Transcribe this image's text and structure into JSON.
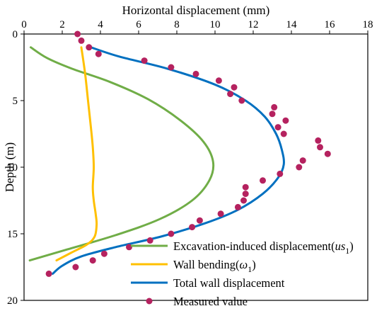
{
  "chart_data": {
    "type": "line",
    "xlabel": "Horizontal displacement (mm)",
    "ylabel": "Depth (m)",
    "xlim": [
      0,
      18
    ],
    "ylim": [
      0,
      20
    ],
    "y_inverted": true,
    "x_axis_position": "top",
    "x_ticks": [
      0,
      2,
      4,
      6,
      8,
      10,
      12,
      14,
      16,
      18
    ],
    "y_ticks": [
      0,
      5,
      10,
      15,
      20
    ],
    "grid": false,
    "legend_position": "bottom-right",
    "series": [
      {
        "name": "Excavation-induced displacement(us1)",
        "legend_main": "Excavation-induced displacement(",
        "legend_italic": "us",
        "legend_sub": "1",
        "legend_close": ")",
        "kind": "line",
        "color": "#70ad47",
        "points": [
          [
            0.35,
            1.0
          ],
          [
            1.2,
            1.8
          ],
          [
            2.5,
            2.6
          ],
          [
            4.5,
            3.6
          ],
          [
            6.5,
            4.9
          ],
          [
            8.2,
            6.5
          ],
          [
            9.4,
            8.1
          ],
          [
            9.9,
            9.6
          ],
          [
            9.7,
            11.0
          ],
          [
            8.8,
            12.5
          ],
          [
            7.1,
            13.9
          ],
          [
            4.8,
            15.1
          ],
          [
            2.2,
            16.2
          ],
          [
            0.3,
            17.0
          ]
        ]
      },
      {
        "name": "Wall bending(ω1)",
        "legend_main": "Wall bending(",
        "legend_italic": "ω",
        "legend_sub": "1",
        "legend_close": ")",
        "kind": "line",
        "color": "#ffc000",
        "points": [
          [
            3.0,
            1.0
          ],
          [
            3.2,
            3.0
          ],
          [
            3.35,
            5.0
          ],
          [
            3.5,
            7.0
          ],
          [
            3.6,
            8.5
          ],
          [
            3.65,
            10.0
          ],
          [
            3.6,
            11.5
          ],
          [
            3.65,
            12.5
          ],
          [
            3.75,
            13.5
          ],
          [
            3.8,
            14.3
          ],
          [
            3.7,
            15.2
          ],
          [
            3.3,
            15.8
          ],
          [
            2.5,
            16.4
          ],
          [
            1.7,
            17.0
          ]
        ]
      },
      {
        "name": "Total wall displacement",
        "legend_main": "Total wall displacement",
        "kind": "line",
        "color": "#0070c0",
        "points": [
          [
            3.5,
            1.0
          ],
          [
            5.0,
            1.7
          ],
          [
            7.5,
            2.6
          ],
          [
            10.0,
            3.8
          ],
          [
            11.6,
            5.0
          ],
          [
            12.6,
            6.2
          ],
          [
            13.2,
            7.5
          ],
          [
            13.5,
            8.7
          ],
          [
            13.6,
            9.8
          ],
          [
            13.3,
            10.8
          ],
          [
            12.5,
            12.0
          ],
          [
            11.2,
            13.2
          ],
          [
            9.5,
            14.2
          ],
          [
            7.2,
            15.2
          ],
          [
            4.8,
            16.0
          ],
          [
            3.0,
            16.7
          ],
          [
            2.0,
            17.4
          ],
          [
            1.5,
            18.0
          ]
        ]
      },
      {
        "name": "Measured value",
        "legend_main": "Measured value",
        "kind": "scatter",
        "color": "#b5225f",
        "points": [
          [
            2.8,
            0.0
          ],
          [
            3.0,
            0.5
          ],
          [
            3.4,
            1.0
          ],
          [
            3.9,
            1.5
          ],
          [
            6.3,
            2.0
          ],
          [
            7.7,
            2.5
          ],
          [
            9.0,
            3.0
          ],
          [
            10.2,
            3.5
          ],
          [
            11.0,
            4.0
          ],
          [
            10.8,
            4.5
          ],
          [
            11.4,
            5.0
          ],
          [
            13.1,
            5.5
          ],
          [
            13.0,
            6.0
          ],
          [
            13.7,
            6.5
          ],
          [
            13.3,
            7.0
          ],
          [
            13.6,
            7.5
          ],
          [
            15.4,
            8.0
          ],
          [
            15.5,
            8.5
          ],
          [
            15.9,
            9.0
          ],
          [
            14.6,
            9.5
          ],
          [
            14.4,
            10.0
          ],
          [
            13.4,
            10.5
          ],
          [
            12.5,
            11.0
          ],
          [
            11.6,
            11.5
          ],
          [
            11.6,
            12.0
          ],
          [
            11.5,
            12.5
          ],
          [
            11.2,
            13.0
          ],
          [
            10.3,
            13.5
          ],
          [
            9.2,
            14.0
          ],
          [
            8.8,
            14.5
          ],
          [
            7.7,
            15.0
          ],
          [
            6.6,
            15.5
          ],
          [
            5.5,
            16.0
          ],
          [
            4.2,
            16.5
          ],
          [
            3.6,
            17.0
          ],
          [
            2.7,
            17.5
          ],
          [
            1.3,
            18.0
          ]
        ]
      }
    ]
  }
}
